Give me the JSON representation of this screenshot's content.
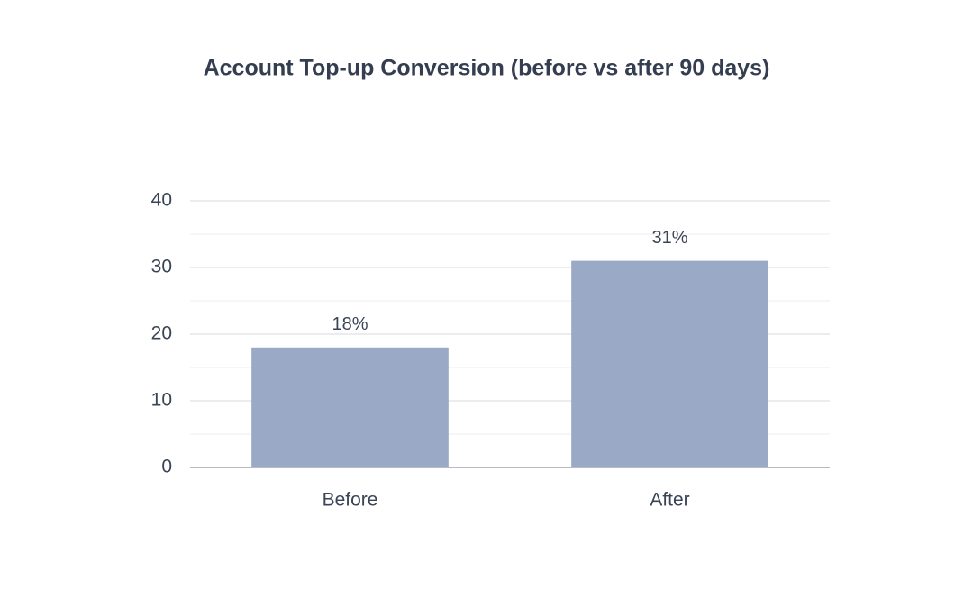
{
  "chart_data": {
    "type": "bar",
    "title": "Account Top-up Conversion (before vs after 90 days)",
    "categories": [
      "Before",
      "After"
    ],
    "values": [
      18,
      31
    ],
    "value_labels": [
      "18%",
      "31%"
    ],
    "color": "#9aaac6",
    "ylim": [
      0,
      40
    ],
    "yticks": [
      0,
      10,
      20,
      30,
      40
    ],
    "minor_yticks": [
      5,
      15,
      25,
      35
    ],
    "grid": true
  }
}
